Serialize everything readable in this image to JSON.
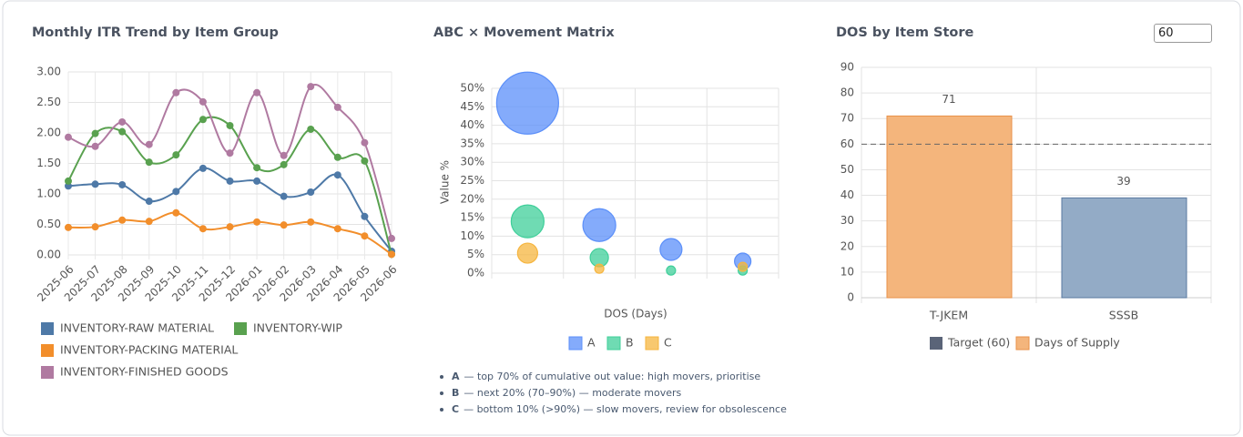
{
  "chart_data": [
    {
      "type": "line",
      "title": "Monthly ITR Trend by Item Group",
      "categories": [
        "2025-06",
        "2025-07",
        "2025-08",
        "2025-09",
        "2025-10",
        "2025-11",
        "2025-12",
        "2026-01",
        "2026-02",
        "2026-03",
        "2026-04",
        "2026-05",
        "2026-06"
      ],
      "series": [
        {
          "name": "INVENTORY-RAW MATERIAL",
          "color": "#4e79a7",
          "values": [
            1.13,
            1.16,
            1.15,
            0.88,
            1.04,
            1.42,
            1.21,
            1.21,
            0.96,
            1.03,
            1.31,
            0.63,
            0.06
          ]
        },
        {
          "name": "INVENTORY-WIP",
          "color": "#59a14f",
          "values": [
            1.21,
            1.99,
            2.02,
            1.52,
            1.64,
            2.22,
            2.12,
            1.43,
            1.48,
            2.06,
            1.6,
            1.54,
            0.01
          ]
        },
        {
          "name": "INVENTORY-PACKING MATERIAL",
          "color": "#f28e2b",
          "values": [
            0.45,
            0.46,
            0.57,
            0.55,
            0.69,
            0.43,
            0.46,
            0.54,
            0.49,
            0.54,
            0.43,
            0.31,
            0.01
          ]
        },
        {
          "name": "INVENTORY-FINISHED GOODS",
          "color": "#b07aa1",
          "values": [
            1.93,
            1.78,
            2.18,
            1.81,
            2.66,
            2.51,
            1.67,
            2.66,
            1.63,
            2.76,
            2.42,
            1.84,
            0.27
          ]
        }
      ],
      "ylim": [
        0,
        3
      ],
      "yticks": [
        {
          "value": 0,
          "label": "0.00"
        },
        {
          "value": 0.5,
          "label": "0.50"
        },
        {
          "value": 1,
          "label": "1.00"
        },
        {
          "value": 1.5,
          "label": "1.50"
        },
        {
          "value": 2,
          "label": "2.00"
        },
        {
          "value": 2.5,
          "label": "2.50"
        },
        {
          "value": 3,
          "label": "3.00"
        }
      ],
      "grid": true
    },
    {
      "type": "bubble",
      "title": "ABC × Movement Matrix",
      "xlabel": "DOS (Days)",
      "ylabel": "Value %",
      "categories": [
        null,
        null,
        null,
        null
      ],
      "series": [
        {
          "name": "A",
          "color": "#5b8ff9",
          "values": [
            46,
            13,
            6.4,
            3.2
          ],
          "sizes": [
            34,
            18,
            12,
            9
          ]
        },
        {
          "name": "B",
          "color": "#3fcf9a",
          "values": [
            14,
            4.2,
            0.7,
            0.7
          ],
          "sizes": [
            18,
            10,
            5,
            5
          ]
        },
        {
          "name": "C",
          "color": "#f6b53f",
          "values": [
            5.4,
            1.2,
            null,
            1.7
          ],
          "sizes": [
            11,
            5,
            null,
            5
          ]
        }
      ],
      "ylim": [
        0,
        50
      ],
      "yticks": [
        {
          "value": 0,
          "label": "0%"
        },
        {
          "value": 5,
          "label": "5%"
        },
        {
          "value": 10,
          "label": "10%"
        },
        {
          "value": 15,
          "label": "15%"
        },
        {
          "value": 20,
          "label": "20%"
        },
        {
          "value": 25,
          "label": "25%"
        },
        {
          "value": 30,
          "label": "30%"
        },
        {
          "value": 35,
          "label": "35%"
        },
        {
          "value": 40,
          "label": "40%"
        },
        {
          "value": 45,
          "label": "45%"
        },
        {
          "value": 50,
          "label": "50%"
        }
      ],
      "grid": true,
      "notes": [
        {
          "key": "A",
          "text": "— top 70% of cumulative out value: high movers, prioritise"
        },
        {
          "key": "B",
          "text": "— next 20% (70–90%) — moderate movers"
        },
        {
          "key": "C",
          "text": "— bottom 10% (>90%) — slow movers, review for obsolescence"
        }
      ]
    },
    {
      "type": "bar",
      "title": "DOS by Item Store",
      "categories": [
        "T-JKEM",
        "SSSB"
      ],
      "values": [
        71,
        39
      ],
      "colors": [
        "#f4b57c",
        "#93abc6"
      ],
      "series_label": "Days of Supply",
      "target": 60,
      "target_label": "Target (60)",
      "target_color": "#5a6478",
      "input_value": "60",
      "ylim": [
        0,
        90
      ],
      "yticks": [
        0,
        10,
        20,
        30,
        40,
        50,
        60,
        70,
        80,
        90
      ],
      "grid": true
    }
  ]
}
